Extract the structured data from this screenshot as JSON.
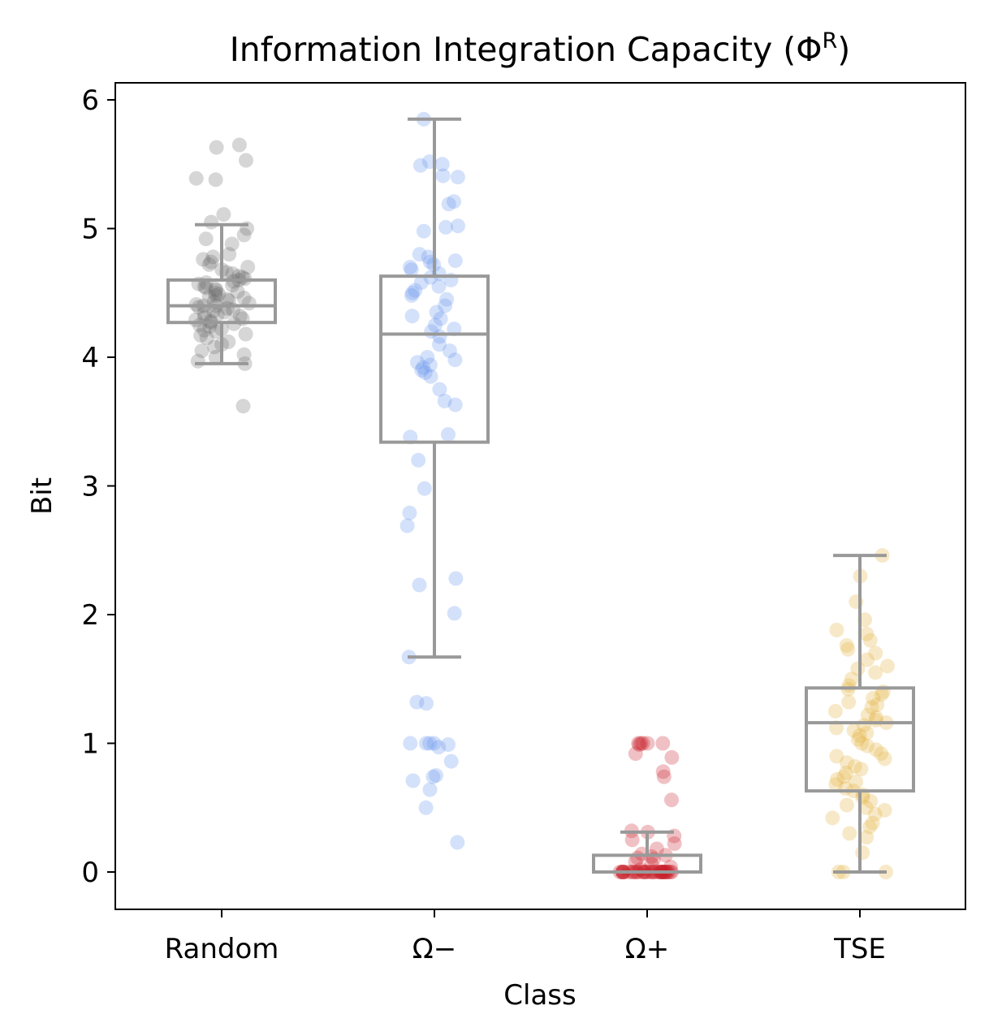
{
  "chart_data": {
    "type": "box",
    "title": "Information Integration Capacity (Φ",
    "title_superscript": "R",
    "title_suffix": ")",
    "xlabel": "Class",
    "ylabel": "Bit",
    "ylim": [
      -0.29,
      6.14
    ],
    "yticks": [
      0,
      1,
      2,
      3,
      4,
      5,
      6
    ],
    "ytick_labels": [
      "0",
      "1",
      "2",
      "3",
      "4",
      "5",
      "6"
    ],
    "categories": [
      "Random",
      "Ω−",
      "Ω+",
      "TSE"
    ],
    "box_color": "#999999",
    "series": [
      {
        "name": "Random",
        "color": "#6b6b6b",
        "box": {
          "whisker_low": 3.95,
          "q1": 4.27,
          "median": 4.4,
          "q3": 4.6,
          "whisker_high": 5.03
        },
        "points": [
          3.62,
          3.95,
          3.97,
          4.0,
          4.02,
          4.05,
          4.08,
          4.1,
          4.12,
          4.15,
          4.17,
          4.18,
          4.2,
          4.21,
          4.22,
          4.24,
          4.25,
          4.26,
          4.27,
          4.28,
          4.29,
          4.3,
          4.31,
          4.32,
          4.33,
          4.34,
          4.35,
          4.36,
          4.37,
          4.38,
          4.39,
          4.4,
          4.4,
          4.41,
          4.42,
          4.43,
          4.44,
          4.45,
          4.46,
          4.47,
          4.48,
          4.49,
          4.5,
          4.51,
          4.52,
          4.53,
          4.54,
          4.55,
          4.56,
          4.57,
          4.58,
          4.59,
          4.6,
          4.61,
          4.62,
          4.63,
          4.65,
          4.66,
          4.68,
          4.7,
          4.72,
          4.74,
          4.76,
          4.78,
          4.8,
          4.88,
          4.92,
          4.95,
          5.0,
          5.05,
          5.11,
          5.38,
          5.39,
          5.53,
          5.63,
          5.65
        ]
      },
      {
        "name": "Ω−",
        "color": "#6495ed",
        "box": {
          "whisker_low": 1.67,
          "q1": 3.34,
          "median": 4.18,
          "q3": 4.63,
          "whisker_high": 5.85
        },
        "points": [
          0.23,
          0.5,
          0.64,
          0.71,
          0.74,
          0.75,
          0.86,
          0.97,
          0.99,
          1.0,
          1.0,
          1.0,
          1.0,
          1.31,
          1.32,
          1.67,
          2.01,
          2.23,
          2.28,
          2.69,
          2.79,
          2.98,
          3.2,
          3.38,
          3.4,
          3.63,
          3.66,
          3.75,
          3.85,
          3.88,
          3.9,
          3.92,
          3.94,
          3.96,
          3.98,
          4.0,
          4.05,
          4.1,
          4.16,
          4.2,
          4.22,
          4.25,
          4.3,
          4.32,
          4.35,
          4.4,
          4.45,
          4.48,
          4.5,
          4.52,
          4.55,
          4.58,
          4.6,
          4.62,
          4.65,
          4.68,
          4.7,
          4.72,
          4.74,
          4.75,
          4.78,
          4.8,
          4.98,
          5.01,
          5.02,
          5.19,
          5.21,
          5.4,
          5.41,
          5.49,
          5.5,
          5.52,
          5.85
        ]
      },
      {
        "name": "Ω+",
        "color": "#c8222a",
        "box": {
          "whisker_low": 0.0,
          "q1": 0.0,
          "median": 0.0,
          "q3": 0.13,
          "whisker_high": 0.31
        },
        "points": [
          0,
          0,
          0,
          0,
          0,
          0,
          0,
          0,
          0,
          0,
          0,
          0,
          0,
          0,
          0,
          0,
          0,
          0,
          0,
          0,
          0,
          0,
          0,
          0,
          0,
          0,
          0,
          0,
          0,
          0,
          0,
          0,
          0,
          0,
          0,
          0.02,
          0.04,
          0.06,
          0.08,
          0.1,
          0.11,
          0.12,
          0.13,
          0.14,
          0.18,
          0.22,
          0.25,
          0.28,
          0.31,
          0.32,
          0.56,
          0.74,
          0.78,
          0.89,
          0.92,
          0.99,
          1.0,
          1.0,
          1.0,
          1.0,
          1.0
        ]
      },
      {
        "name": "TSE",
        "color": "#e3b03a",
        "box": {
          "whisker_low": 0.0,
          "q1": 0.63,
          "median": 1.16,
          "q3": 1.43,
          "whisker_high": 2.46
        },
        "points": [
          0.0,
          0.0,
          0.0,
          0.15,
          0.27,
          0.3,
          0.35,
          0.38,
          0.42,
          0.45,
          0.48,
          0.5,
          0.52,
          0.55,
          0.58,
          0.6,
          0.63,
          0.65,
          0.68,
          0.7,
          0.72,
          0.74,
          0.77,
          0.8,
          0.82,
          0.85,
          0.88,
          0.9,
          0.92,
          0.95,
          0.98,
          1.0,
          1.03,
          1.06,
          1.08,
          1.1,
          1.12,
          1.14,
          1.16,
          1.18,
          1.2,
          1.22,
          1.25,
          1.28,
          1.3,
          1.32,
          1.35,
          1.38,
          1.4,
          1.42,
          1.45,
          1.5,
          1.55,
          1.58,
          1.6,
          1.65,
          1.7,
          1.73,
          1.76,
          1.8,
          1.85,
          1.88,
          1.96,
          2.1,
          2.3,
          2.46
        ]
      }
    ]
  }
}
